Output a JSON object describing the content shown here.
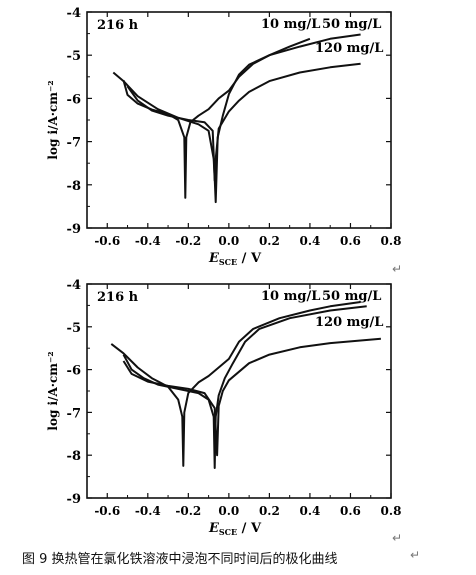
{
  "chart_data": [
    {
      "type": "line",
      "annotation": "216 h",
      "xlabel": "E_SCE / V",
      "ylabel": "log i/A·cm⁻²",
      "xlim": [
        -0.7,
        0.8
      ],
      "ylim": [
        -9,
        -4
      ],
      "xticks": [
        -0.6,
        -0.4,
        -0.2,
        0.0,
        0.2,
        0.4,
        0.6,
        0.8
      ],
      "xtick_labels": [
        "-0.6",
        "-0.4",
        "-0.2",
        "0.0",
        "0.2",
        "0.4",
        "0.6",
        "0.8"
      ],
      "yticks": [
        -9,
        -8,
        -7,
        -6,
        -5,
        -4
      ],
      "ytick_labels": [
        "-9",
        "-8",
        "-7",
        "-6",
        "-5",
        "-4"
      ],
      "grid": false,
      "series": [
        {
          "name": "10 mg/L",
          "points": [
            [
              -0.52,
              -5.58
            ],
            [
              -0.5,
              -5.92
            ],
            [
              -0.45,
              -6.12
            ],
            [
              -0.38,
              -6.26
            ],
            [
              -0.3,
              -6.36
            ],
            [
              -0.25,
              -6.5
            ],
            [
              -0.22,
              -6.9
            ],
            [
              -0.215,
              -8.3
            ],
            [
              -0.21,
              -6.9
            ],
            [
              -0.19,
              -6.55
            ],
            [
              -0.15,
              -6.4
            ],
            [
              -0.1,
              -6.25
            ],
            [
              -0.05,
              -6.0
            ],
            [
              0.0,
              -5.82
            ],
            [
              0.05,
              -5.5
            ],
            [
              0.12,
              -5.2
            ],
            [
              0.2,
              -5.0
            ],
            [
              0.3,
              -4.8
            ],
            [
              0.4,
              -4.62
            ]
          ]
        },
        {
          "name": "50 mg/L",
          "points": [
            [
              -0.5,
              -5.72
            ],
            [
              -0.45,
              -6.05
            ],
            [
              -0.38,
              -6.28
            ],
            [
              -0.3,
              -6.4
            ],
            [
              -0.2,
              -6.5
            ],
            [
              -0.12,
              -6.55
            ],
            [
              -0.08,
              -6.75
            ],
            [
              -0.065,
              -8.4
            ],
            [
              -0.055,
              -6.9
            ],
            [
              -0.03,
              -6.4
            ],
            [
              0.0,
              -5.9
            ],
            [
              0.05,
              -5.45
            ],
            [
              0.1,
              -5.22
            ],
            [
              0.2,
              -5.0
            ],
            [
              0.35,
              -4.8
            ],
            [
              0.5,
              -4.62
            ],
            [
              0.65,
              -4.52
            ]
          ]
        },
        {
          "name": "120 mg/L",
          "points": [
            [
              -0.57,
              -5.4
            ],
            [
              -0.52,
              -5.6
            ],
            [
              -0.45,
              -5.95
            ],
            [
              -0.35,
              -6.25
            ],
            [
              -0.25,
              -6.45
            ],
            [
              -0.15,
              -6.6
            ],
            [
              -0.1,
              -6.75
            ],
            [
              -0.075,
              -7.4
            ],
            [
              -0.07,
              -7.9
            ],
            [
              -0.065,
              -7.4
            ],
            [
              -0.05,
              -6.7
            ],
            [
              0.0,
              -6.3
            ],
            [
              0.05,
              -6.05
            ],
            [
              0.1,
              -5.85
            ],
            [
              0.2,
              -5.6
            ],
            [
              0.35,
              -5.4
            ],
            [
              0.5,
              -5.28
            ],
            [
              0.65,
              -5.2
            ]
          ]
        }
      ]
    },
    {
      "type": "line",
      "annotation": "216 h",
      "xlabel": "E_SCE / V",
      "ylabel": "log i/A·cm⁻²",
      "xlim": [
        -0.7,
        0.8
      ],
      "ylim": [
        -9,
        -4
      ],
      "xticks": [
        -0.6,
        -0.4,
        -0.2,
        0.0,
        0.2,
        0.4,
        0.6,
        0.8
      ],
      "xtick_labels": [
        "-0.6",
        "-0.4",
        "-0.2",
        "0.0",
        "0.2",
        "0.4",
        "0.6",
        "0.8"
      ],
      "yticks": [
        -9,
        -8,
        -7,
        -6,
        -5,
        -4
      ],
      "ytick_labels": [
        "-9",
        "-8",
        "-7",
        "-6",
        "-5",
        "-4"
      ],
      "grid": false,
      "series": [
        {
          "name": "10 mg/L",
          "points": [
            [
              -0.58,
              -5.4
            ],
            [
              -0.52,
              -5.62
            ],
            [
              -0.45,
              -5.95
            ],
            [
              -0.38,
              -6.2
            ],
            [
              -0.3,
              -6.4
            ],
            [
              -0.25,
              -6.7
            ],
            [
              -0.23,
              -7.1
            ],
            [
              -0.225,
              -8.25
            ],
            [
              -0.22,
              -7.0
            ],
            [
              -0.2,
              -6.55
            ],
            [
              -0.15,
              -6.3
            ],
            [
              -0.1,
              -6.15
            ],
            [
              -0.05,
              -5.95
            ],
            [
              0.0,
              -5.75
            ],
            [
              0.05,
              -5.35
            ],
            [
              0.12,
              -5.05
            ],
            [
              0.25,
              -4.8
            ],
            [
              0.4,
              -4.62
            ],
            [
              0.5,
              -4.52
            ],
            [
              0.65,
              -4.42
            ]
          ]
        },
        {
          "name": "50 mg/L",
          "points": [
            [
              -0.52,
              -5.65
            ],
            [
              -0.48,
              -6.0
            ],
            [
              -0.42,
              -6.2
            ],
            [
              -0.35,
              -6.35
            ],
            [
              -0.25,
              -6.45
            ],
            [
              -0.15,
              -6.55
            ],
            [
              -0.1,
              -6.7
            ],
            [
              -0.075,
              -7.1
            ],
            [
              -0.07,
              -8.3
            ],
            [
              -0.065,
              -7.1
            ],
            [
              -0.05,
              -6.6
            ],
            [
              -0.02,
              -6.2
            ],
            [
              0.02,
              -5.85
            ],
            [
              0.08,
              -5.35
            ],
            [
              0.15,
              -5.05
            ],
            [
              0.3,
              -4.8
            ],
            [
              0.5,
              -4.62
            ],
            [
              0.68,
              -4.52
            ]
          ]
        },
        {
          "name": "120 mg/L",
          "points": [
            [
              -0.52,
              -5.8
            ],
            [
              -0.48,
              -6.1
            ],
            [
              -0.4,
              -6.28
            ],
            [
              -0.3,
              -6.38
            ],
            [
              -0.2,
              -6.45
            ],
            [
              -0.12,
              -6.55
            ],
            [
              -0.07,
              -6.9
            ],
            [
              -0.058,
              -8.0
            ],
            [
              -0.05,
              -6.85
            ],
            [
              -0.03,
              -6.5
            ],
            [
              0.0,
              -6.25
            ],
            [
              0.1,
              -5.85
            ],
            [
              0.2,
              -5.65
            ],
            [
              0.35,
              -5.48
            ],
            [
              0.5,
              -5.38
            ],
            [
              0.75,
              -5.28
            ]
          ]
        }
      ]
    }
  ],
  "caption": "图 9  换热管在氯化铁溶液中浸泡不同时间后的极化曲线",
  "return_mark": "↵"
}
